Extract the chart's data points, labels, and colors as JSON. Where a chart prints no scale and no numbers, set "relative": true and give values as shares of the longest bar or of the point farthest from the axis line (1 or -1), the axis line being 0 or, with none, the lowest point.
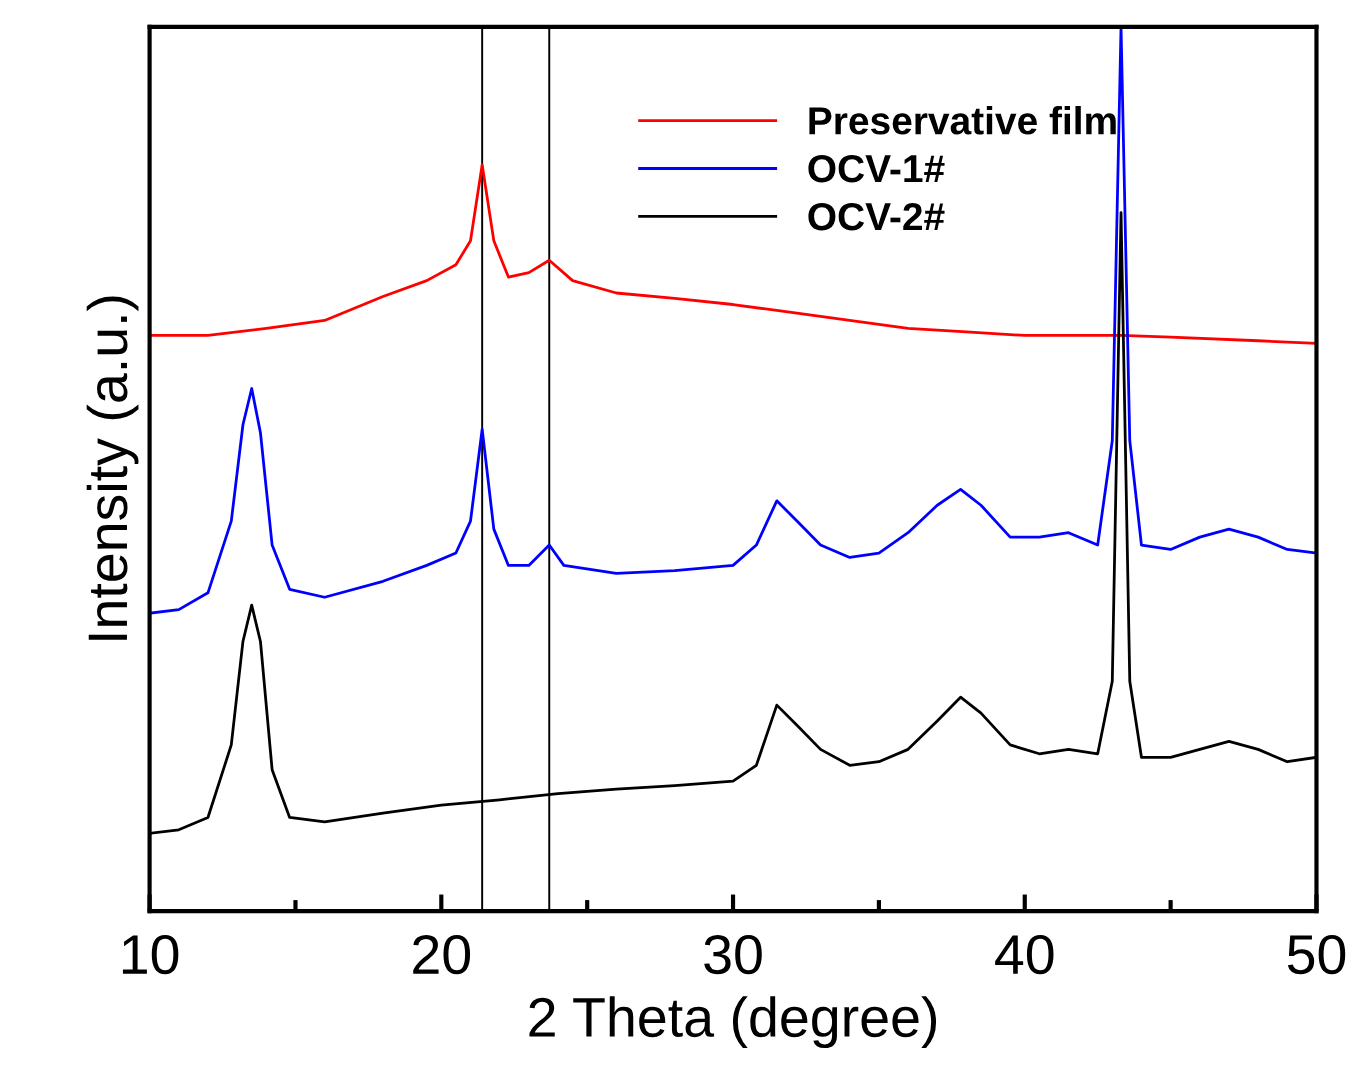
{
  "chart_data": {
    "type": "line",
    "relative": true,
    "xlabel": "2 Theta (degree)",
    "ylabel": "Intensity (a.u.)",
    "xlim": [
      10,
      50
    ],
    "xticks": [
      10,
      {
        "value": 15,
        "label": null
      },
      20,
      {
        "value": 25,
        "label": null
      },
      30,
      {
        "value": 35,
        "label": null
      },
      40,
      {
        "value": 45,
        "label": null
      },
      50
    ],
    "legend": "top right",
    "grid": false,
    "tick_labels": "x",
    "ref_lines": [
      {
        "axis": "x",
        "value": 21.4,
        "label": null,
        "color": "#000000"
      },
      {
        "axis": "x",
        "value": 23.7,
        "label": null,
        "color": "#000000"
      }
    ],
    "series": [
      {
        "name": "Preservative film",
        "color": "#ff0000",
        "x": [
          10,
          12,
          14,
          16,
          18,
          19.5,
          20.5,
          21.0,
          21.4,
          21.8,
          22.3,
          23,
          23.7,
          24.5,
          26,
          28,
          30,
          32,
          34,
          36,
          38,
          40,
          42,
          43.3,
          45,
          48,
          50
        ],
        "values": [
          0.651,
          0.651,
          0.659,
          0.668,
          0.695,
          0.713,
          0.731,
          0.758,
          0.844,
          0.758,
          0.717,
          0.722,
          0.736,
          0.713,
          0.699,
          0.693,
          0.686,
          0.677,
          0.668,
          0.659,
          0.655,
          0.651,
          0.651,
          0.651,
          0.649,
          0.645,
          0.642
        ]
      },
      {
        "name": "OCV-1#",
        "color": "#0000ff",
        "x": [
          10,
          11,
          12,
          12.8,
          13.2,
          13.5,
          13.8,
          14.2,
          14.8,
          16,
          18,
          19.5,
          20.5,
          21.0,
          21.4,
          21.8,
          22.3,
          23,
          23.7,
          24.2,
          26,
          28,
          30,
          30.8,
          31.5,
          32.2,
          33,
          34,
          35,
          36,
          37,
          37.8,
          38.5,
          39.5,
          40.5,
          41.5,
          42.5,
          43.0,
          43.3,
          43.6,
          44.0,
          45,
          46,
          47,
          48,
          49,
          50
        ],
        "values": [
          0.337,
          0.341,
          0.36,
          0.441,
          0.55,
          0.591,
          0.541,
          0.414,
          0.364,
          0.355,
          0.373,
          0.391,
          0.405,
          0.441,
          0.545,
          0.432,
          0.391,
          0.391,
          0.414,
          0.391,
          0.382,
          0.385,
          0.391,
          0.414,
          0.464,
          0.441,
          0.414,
          0.4,
          0.405,
          0.428,
          0.459,
          0.477,
          0.459,
          0.423,
          0.423,
          0.428,
          0.414,
          0.532,
          1.0,
          0.532,
          0.414,
          0.409,
          0.423,
          0.432,
          0.423,
          0.409,
          0.405
        ]
      },
      {
        "name": "OCV-2#",
        "color": "#000000",
        "x": [
          10,
          11,
          12,
          12.8,
          13.2,
          13.5,
          13.8,
          14.2,
          14.8,
          16,
          18,
          20,
          22,
          24,
          26,
          28,
          30,
          30.8,
          31.5,
          32.2,
          33,
          34,
          35,
          36,
          37,
          37.8,
          38.5,
          39.5,
          40.5,
          41.5,
          42.5,
          43.0,
          43.3,
          43.6,
          44.0,
          45,
          46,
          47,
          48,
          49,
          50
        ],
        "values": [
          0.088,
          0.092,
          0.106,
          0.188,
          0.305,
          0.346,
          0.305,
          0.16,
          0.106,
          0.101,
          0.111,
          0.12,
          0.126,
          0.133,
          0.138,
          0.142,
          0.147,
          0.165,
          0.233,
          0.21,
          0.183,
          0.165,
          0.169,
          0.183,
          0.215,
          0.242,
          0.224,
          0.188,
          0.178,
          0.183,
          0.178,
          0.26,
          0.79,
          0.26,
          0.174,
          0.174,
          0.183,
          0.192,
          0.183,
          0.169,
          0.174
        ]
      }
    ]
  }
}
